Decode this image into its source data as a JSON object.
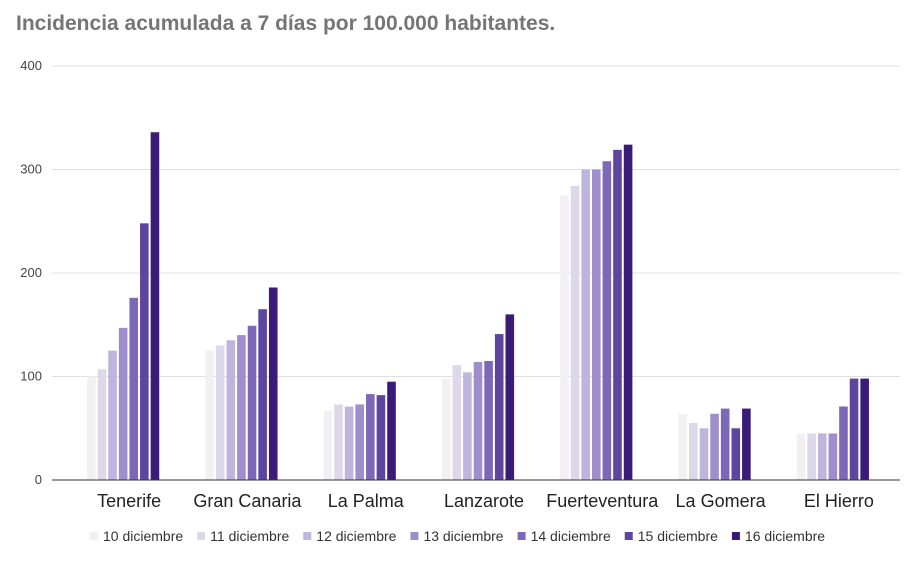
{
  "chart_data": {
    "type": "bar",
    "title": "Incidencia acumulada a 7 días por 100.000 habitantes.",
    "xlabel": "",
    "ylabel": "",
    "ylim": [
      0,
      400
    ],
    "yticks": [
      0,
      100,
      200,
      300,
      400
    ],
    "grid": true,
    "legend_position": "bottom",
    "categories": [
      "Tenerife",
      "Gran Canaria",
      "La Palma",
      "Lanzarote",
      "Fuerteventura",
      "La Gomera",
      "El Hierro"
    ],
    "series": [
      {
        "name": "10 diciembre",
        "color": "#f1f1f4",
        "values": [
          100,
          125,
          67,
          98,
          275,
          64,
          45
        ]
      },
      {
        "name": "11 diciembre",
        "color": "#dcd8ea",
        "values": [
          107,
          130,
          73,
          111,
          284,
          55,
          45
        ]
      },
      {
        "name": "12 diciembre",
        "color": "#bfb5dc",
        "values": [
          125,
          135,
          71,
          104,
          300,
          50,
          45
        ]
      },
      {
        "name": "13 diciembre",
        "color": "#9e8fcc",
        "values": [
          147,
          140,
          73,
          114,
          300,
          64,
          45
        ]
      },
      {
        "name": "14 diciembre",
        "color": "#7d68b8",
        "values": [
          176,
          149,
          83,
          115,
          308,
          69,
          71
        ]
      },
      {
        "name": "15 diciembre",
        "color": "#5e45a0",
        "values": [
          248,
          165,
          82,
          141,
          319,
          50,
          98
        ]
      },
      {
        "name": "16 diciembre",
        "color": "#3a1c78",
        "values": [
          336,
          186,
          95,
          160,
          324,
          69,
          98
        ]
      }
    ]
  }
}
